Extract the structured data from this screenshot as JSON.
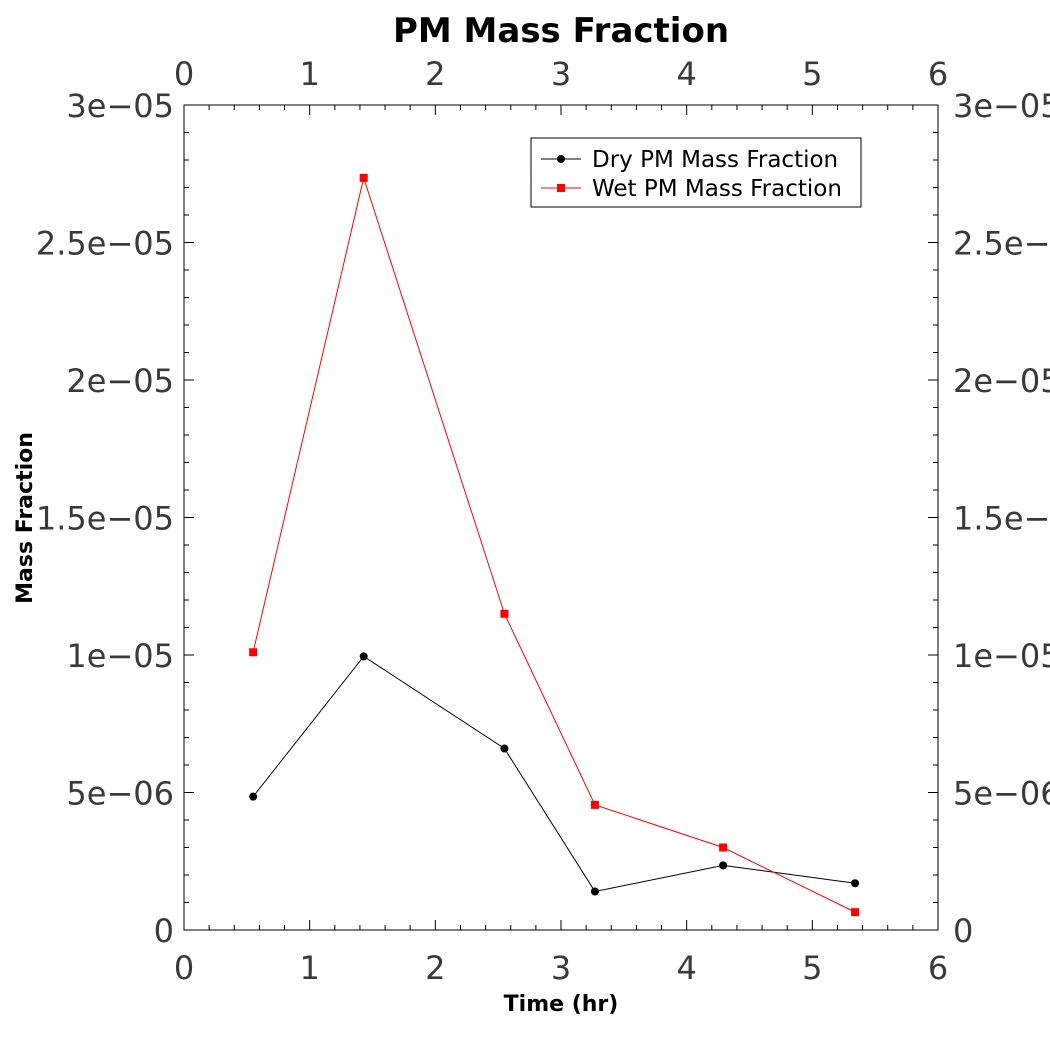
{
  "chart_data": {
    "type": "line",
    "title": "PM Mass Fraction",
    "xlabel": "Time (hr)",
    "ylabel": "Mass Fraction",
    "xlim": [
      0,
      6
    ],
    "ylim": [
      0,
      3e-05
    ],
    "x_ticks": [
      "0",
      "1",
      "2",
      "3",
      "4",
      "5",
      "6"
    ],
    "y_ticks": [
      "0",
      "5e−06",
      "1e−05",
      "1.5e−05",
      "2e−05",
      "2.5e−05",
      "3e−05"
    ],
    "grid": false,
    "legend_position": "top-right",
    "series": [
      {
        "name": "Dry PM Mass Fraction",
        "color": "#000000",
        "marker": "circle",
        "x": [
          0.55,
          1.43,
          2.55,
          3.27,
          4.29,
          5.34
        ],
        "y": [
          4.85e-06,
          9.95e-06,
          6.6e-06,
          1.4e-06,
          2.35e-06,
          1.7e-06
        ]
      },
      {
        "name": "Wet PM Mass Fraction",
        "color": "#ff0000",
        "marker": "square",
        "x": [
          0.55,
          1.43,
          2.55,
          3.27,
          4.29,
          5.34
        ],
        "y": [
          1.01e-05,
          2.735e-05,
          1.15e-05,
          4.55e-06,
          3e-06,
          6.5e-07
        ]
      }
    ]
  }
}
